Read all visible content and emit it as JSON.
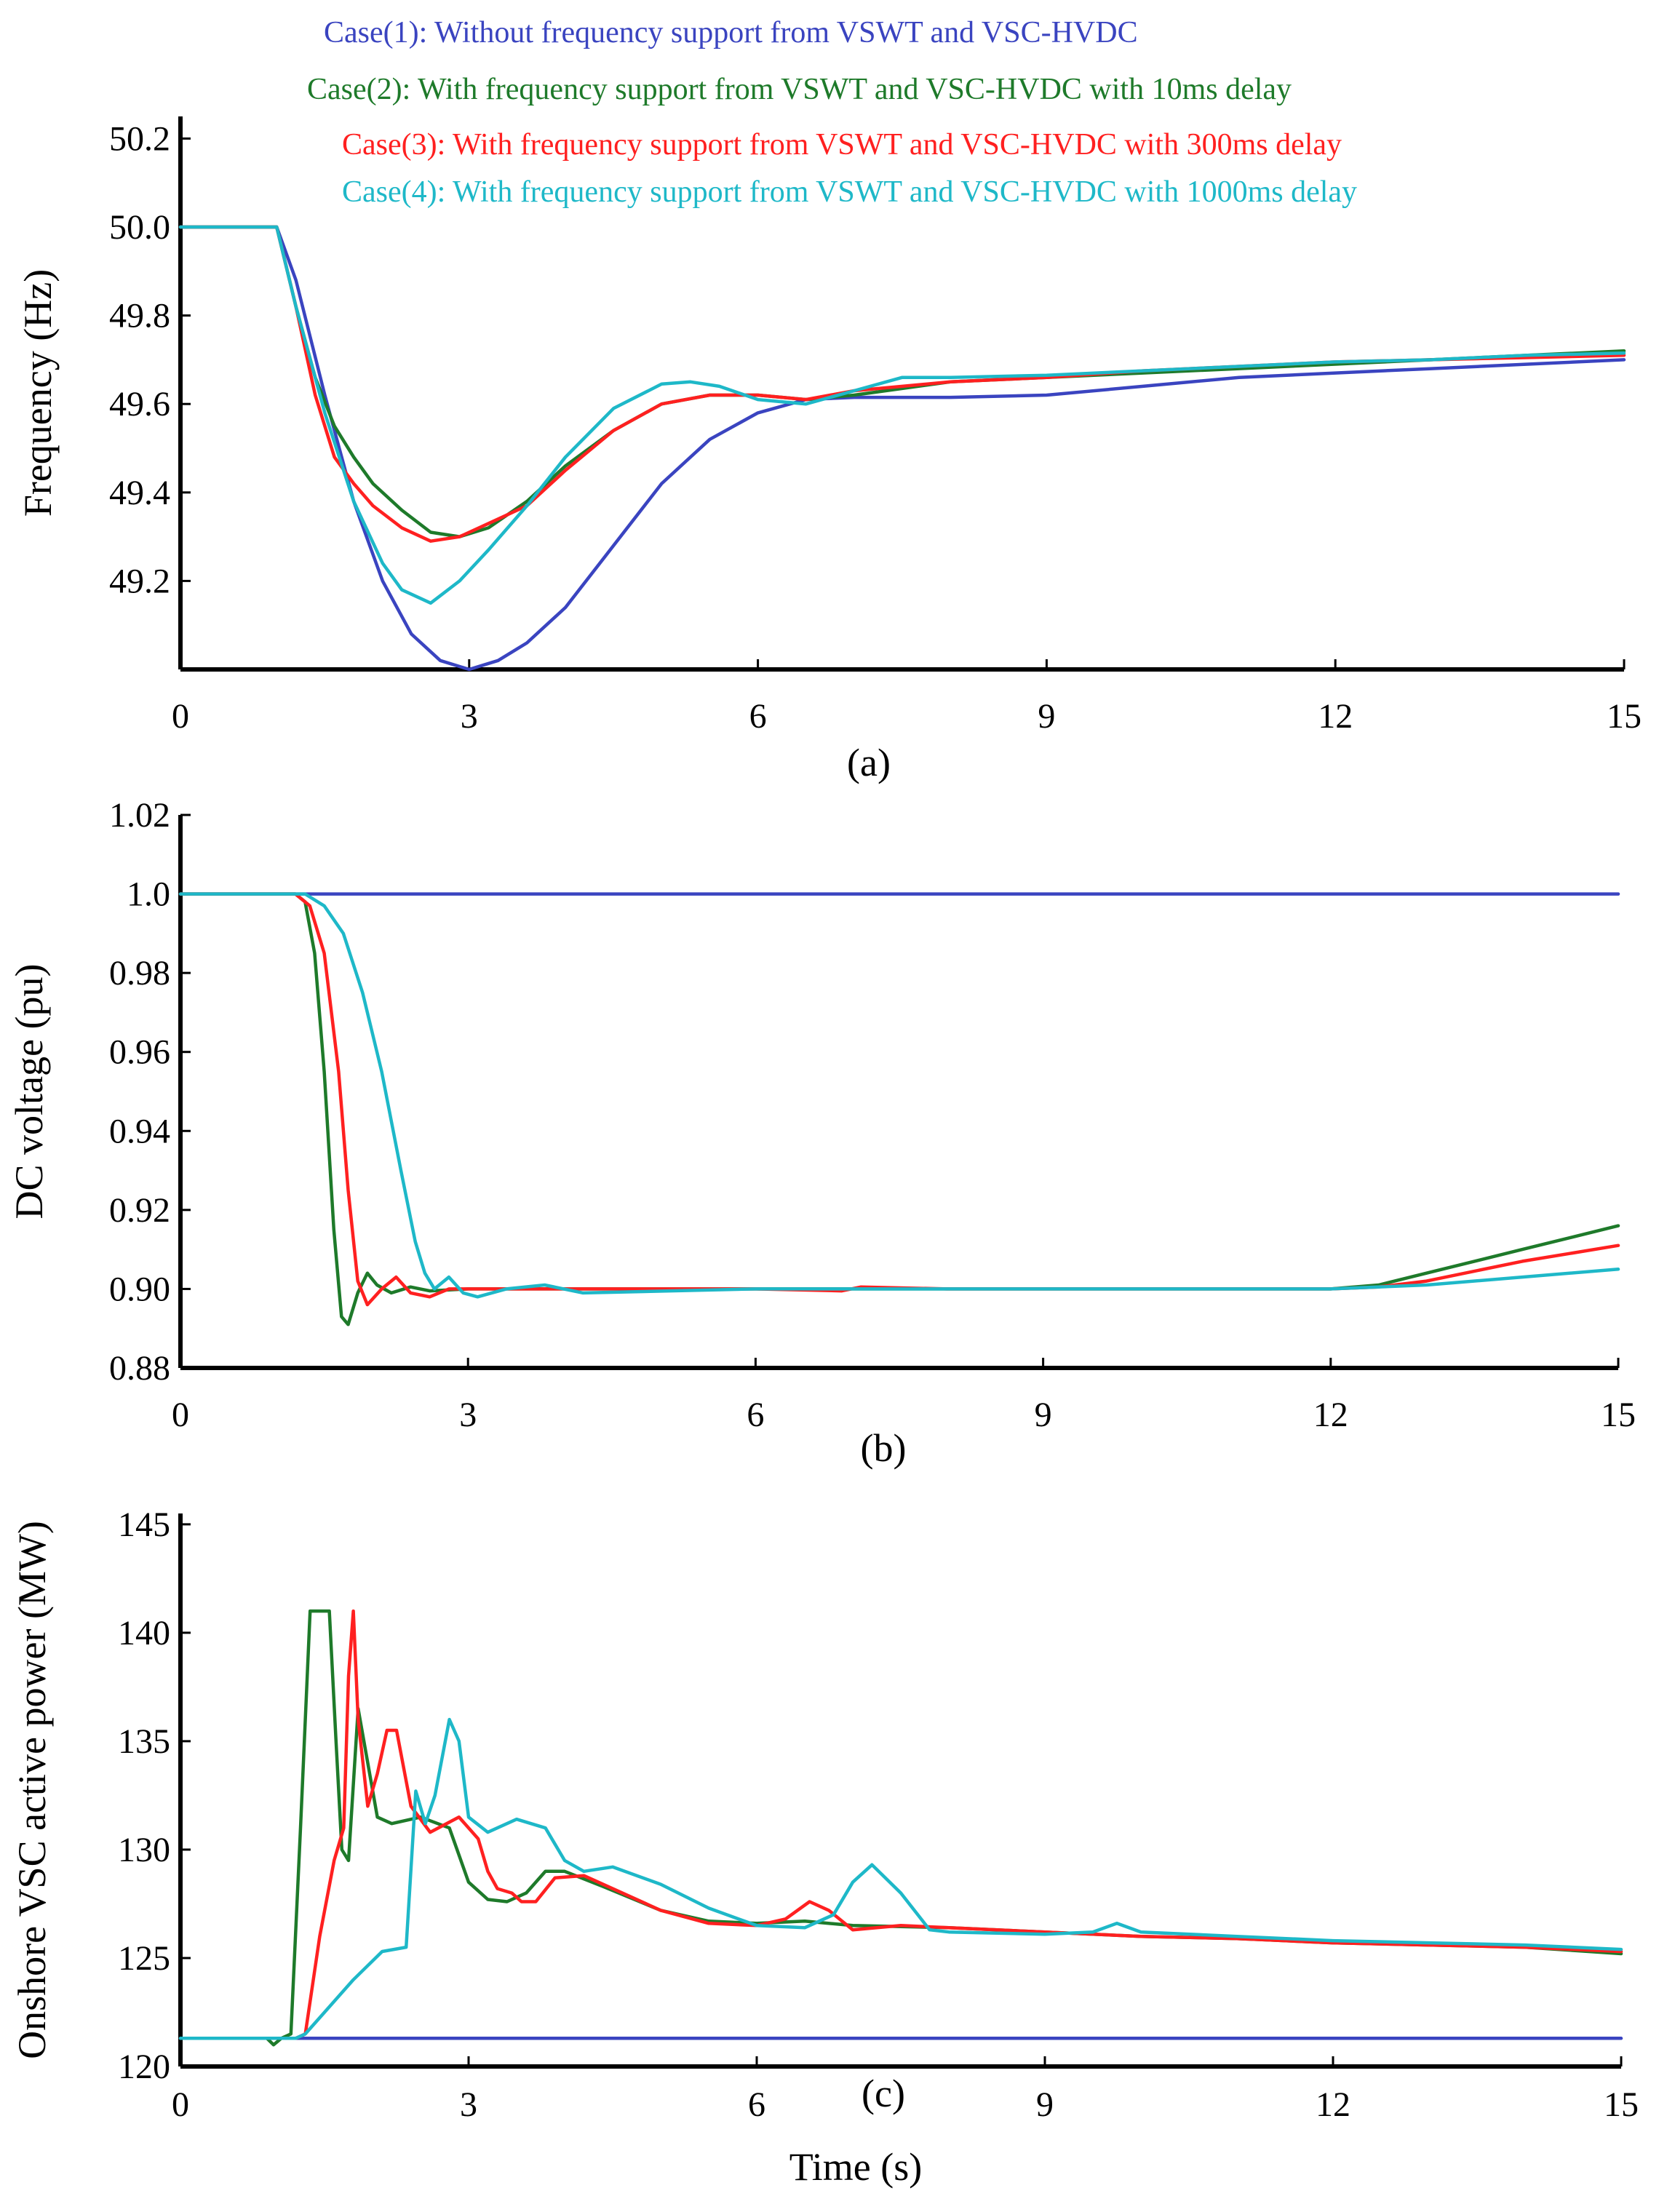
{
  "legend": [
    {
      "key": "case1",
      "label": "Case(1): Without frequency support from VSWT and VSC-HVDC",
      "color": "#3A44C0"
    },
    {
      "key": "case2",
      "label": "Case(2): With frequency support from VSWT and VSC-HVDC with 10ms delay",
      "color": "#1E7A2A"
    },
    {
      "key": "case3",
      "label": "Case(3): With frequency support from VSWT and VSC-HVDC with 300ms delay",
      "color": "#FF2020"
    },
    {
      "key": "case4",
      "label": "Case(4): With frequency support from VSWT and VSC-HVDC with 1000ms delay",
      "color": "#1EB8C8"
    }
  ],
  "xlabel": "Time (s)",
  "chart_data": [
    {
      "type": "line",
      "id": "a",
      "panel_label": "(a)",
      "ylabel": "Frequency (Hz)",
      "xlabel": "",
      "xlim": [
        0,
        15
      ],
      "ylim": [
        49.0,
        50.25
      ],
      "xticks": [
        0,
        3,
        6,
        9,
        12,
        15
      ],
      "xtick_labels": [
        "0",
        "3",
        "6",
        "9",
        "12",
        "15"
      ],
      "yticks": [
        49.2,
        49.4,
        49.6,
        49.8,
        50.0,
        50.2
      ],
      "ytick_labels": [
        "49.2",
        "49.4",
        "49.6",
        "49.8",
        "50.0",
        "50.2"
      ],
      "series": [
        {
          "name": "Case(1)",
          "color": "#3A44C0",
          "x": [
            0,
            1,
            1.2,
            1.5,
            1.8,
            2.1,
            2.4,
            2.7,
            3,
            3.3,
            3.6,
            4,
            4.5,
            5,
            5.5,
            6,
            6.5,
            7,
            8,
            9,
            10,
            11,
            12,
            13,
            14,
            15
          ],
          "y": [
            50.0,
            50.0,
            49.88,
            49.62,
            49.38,
            49.2,
            49.08,
            49.02,
            49.0,
            49.02,
            49.06,
            49.14,
            49.28,
            49.42,
            49.52,
            49.58,
            49.61,
            49.615,
            49.615,
            49.62,
            49.64,
            49.66,
            49.67,
            49.68,
            49.69,
            49.7
          ]
        },
        {
          "name": "Case(2)",
          "color": "#1E7A2A",
          "x": [
            0,
            1,
            1.2,
            1.4,
            1.6,
            1.8,
            2.0,
            2.3,
            2.6,
            2.9,
            3.2,
            3.6,
            4,
            4.5,
            5,
            5.5,
            6,
            6.5,
            7,
            8,
            9,
            10,
            11,
            12,
            13,
            14,
            15
          ],
          "y": [
            50.0,
            50.0,
            49.82,
            49.66,
            49.55,
            49.48,
            49.42,
            49.36,
            49.31,
            49.3,
            49.32,
            49.38,
            49.46,
            49.54,
            49.6,
            49.62,
            49.62,
            49.61,
            49.62,
            49.65,
            49.66,
            49.67,
            49.68,
            49.69,
            49.7,
            49.71,
            49.72
          ]
        },
        {
          "name": "Case(3)",
          "color": "#FF2020",
          "x": [
            0,
            1,
            1.2,
            1.4,
            1.6,
            1.8,
            2.0,
            2.3,
            2.6,
            2.9,
            3.2,
            3.6,
            4,
            4.5,
            5,
            5.5,
            6,
            6.5,
            7,
            8,
            9,
            10,
            11,
            12,
            13,
            14,
            15
          ],
          "y": [
            50.0,
            50.0,
            49.82,
            49.62,
            49.48,
            49.42,
            49.37,
            49.32,
            49.29,
            49.3,
            49.33,
            49.37,
            49.45,
            49.54,
            49.6,
            49.62,
            49.62,
            49.61,
            49.63,
            49.65,
            49.66,
            49.675,
            49.685,
            49.695,
            49.7,
            49.705,
            49.71
          ]
        },
        {
          "name": "Case(4)",
          "color": "#1EB8C8",
          "x": [
            0,
            1,
            1.2,
            1.5,
            1.8,
            2.1,
            2.3,
            2.6,
            2.9,
            3.2,
            3.6,
            4,
            4.5,
            5,
            5.3,
            5.6,
            6,
            6.5,
            7,
            7.5,
            8,
            9,
            10,
            11,
            12,
            13,
            14,
            15
          ],
          "y": [
            50.0,
            50.0,
            49.82,
            49.58,
            49.38,
            49.24,
            49.18,
            49.15,
            49.2,
            49.27,
            49.37,
            49.48,
            49.59,
            49.645,
            49.65,
            49.64,
            49.61,
            49.6,
            49.63,
            49.66,
            49.66,
            49.665,
            49.675,
            49.685,
            49.695,
            49.7,
            49.71,
            49.715
          ]
        }
      ]
    },
    {
      "type": "line",
      "id": "b",
      "panel_label": "(b)",
      "ylabel": "DC voltage (pu)",
      "xlabel": "",
      "xlim": [
        0,
        15
      ],
      "ylim": [
        0.88,
        1.02
      ],
      "xticks": [
        0,
        3,
        6,
        9,
        12,
        15
      ],
      "xtick_labels": [
        "0",
        "3",
        "6",
        "9",
        "12",
        "15"
      ],
      "yticks": [
        0.88,
        0.9,
        0.92,
        0.94,
        0.96,
        0.98,
        1.0,
        1.02
      ],
      "ytick_labels": [
        "0.88",
        "0.90",
        "0.92",
        "0.94",
        "0.96",
        "0.98",
        "1.0",
        "1.02"
      ],
      "series": [
        {
          "name": "Case(1)",
          "color": "#3A44C0",
          "x": [
            0,
            15
          ],
          "y": [
            1.0,
            1.0
          ]
        },
        {
          "name": "Case(2)",
          "color": "#1E7A2A",
          "x": [
            0,
            1.2,
            1.3,
            1.4,
            1.5,
            1.6,
            1.68,
            1.75,
            1.85,
            1.95,
            2.05,
            2.2,
            2.4,
            2.6,
            3,
            4,
            6,
            8,
            10,
            12,
            12.5,
            13,
            14,
            15
          ],
          "y": [
            1.0,
            1.0,
            0.998,
            0.985,
            0.955,
            0.915,
            0.893,
            0.891,
            0.899,
            0.904,
            0.901,
            0.899,
            0.9005,
            0.8995,
            0.9,
            0.9,
            0.9,
            0.9,
            0.9,
            0.9,
            0.901,
            0.904,
            0.91,
            0.916
          ]
        },
        {
          "name": "Case(3)",
          "color": "#FF2020",
          "x": [
            0,
            1.2,
            1.35,
            1.5,
            1.65,
            1.75,
            1.85,
            1.95,
            2.1,
            2.25,
            2.4,
            2.6,
            2.8,
            3,
            4,
            6,
            6.9,
            7.1,
            8,
            10,
            12,
            12.5,
            13,
            14,
            15
          ],
          "y": [
            1.0,
            1.0,
            0.997,
            0.985,
            0.955,
            0.925,
            0.902,
            0.896,
            0.9,
            0.903,
            0.899,
            0.898,
            0.9,
            0.9,
            0.9,
            0.9,
            0.8995,
            0.9005,
            0.9,
            0.9,
            0.9,
            0.9005,
            0.902,
            0.907,
            0.911
          ]
        },
        {
          "name": "Case(4)",
          "color": "#1EB8C8",
          "x": [
            0,
            1.3,
            1.5,
            1.7,
            1.9,
            2.1,
            2.3,
            2.45,
            2.55,
            2.65,
            2.8,
            2.95,
            3.1,
            3.4,
            3.8,
            4.2,
            6,
            8,
            10,
            12,
            13,
            14,
            15
          ],
          "y": [
            1.0,
            1.0,
            0.997,
            0.99,
            0.975,
            0.955,
            0.93,
            0.912,
            0.904,
            0.9,
            0.903,
            0.899,
            0.898,
            0.9,
            0.901,
            0.899,
            0.9,
            0.9,
            0.9,
            0.9,
            0.901,
            0.903,
            0.905
          ]
        }
      ]
    },
    {
      "type": "line",
      "id": "c",
      "panel_label": "(c)",
      "ylabel": "Onshore VSC active power (MW)",
      "xlabel": "Time (s)",
      "xlim": [
        0,
        15
      ],
      "ylim": [
        120,
        145.5
      ],
      "xticks": [
        0,
        3,
        6,
        9,
        12,
        15
      ],
      "xtick_labels": [
        "0",
        "3",
        "6",
        "9",
        "12",
        "15"
      ],
      "yticks": [
        120,
        125,
        130,
        135,
        140,
        145
      ],
      "ytick_labels": [
        "120",
        "125",
        "130",
        "135",
        "140",
        "145"
      ],
      "series": [
        {
          "name": "Case(1)",
          "color": "#3A44C0",
          "x": [
            0,
            15
          ],
          "y": [
            121.3,
            121.3
          ]
        },
        {
          "name": "Case(2)",
          "color": "#1E7A2A",
          "x": [
            0,
            0.9,
            0.97,
            1.05,
            1.15,
            1.25,
            1.35,
            1.45,
            1.55,
            1.62,
            1.68,
            1.75,
            1.85,
            1.95,
            2.05,
            2.2,
            2.5,
            2.8,
            3.0,
            3.2,
            3.4,
            3.6,
            3.8,
            4.0,
            4.4,
            5,
            5.5,
            6,
            6.5,
            7,
            8,
            9,
            10,
            11,
            12,
            13,
            14,
            15
          ],
          "y": [
            121.3,
            121.3,
            121.0,
            121.3,
            121.5,
            131,
            141,
            141,
            141,
            135,
            130,
            129.5,
            136.5,
            134,
            131.5,
            131.2,
            131.5,
            131,
            128.5,
            127.7,
            127.6,
            128,
            129,
            129,
            128.3,
            127.2,
            126.7,
            126.6,
            126.7,
            126.5,
            126.4,
            126.2,
            126,
            125.9,
            125.7,
            125.6,
            125.5,
            125.2
          ]
        },
        {
          "name": "Case(3)",
          "color": "#FF2020",
          "x": [
            0,
            1.2,
            1.3,
            1.45,
            1.6,
            1.7,
            1.75,
            1.8,
            1.85,
            1.95,
            2.05,
            2.15,
            2.25,
            2.4,
            2.6,
            2.9,
            3.1,
            3.2,
            3.3,
            3.45,
            3.55,
            3.7,
            3.9,
            4.2,
            4.5,
            5,
            5.5,
            6,
            6.3,
            6.55,
            6.75,
            7,
            7.5,
            8,
            9,
            10,
            11,
            12,
            13,
            14,
            15
          ],
          "y": [
            121.3,
            121.3,
            121.5,
            126,
            129.5,
            131,
            138,
            141,
            136,
            132,
            133.5,
            135.5,
            135.5,
            132,
            130.8,
            131.5,
            130.5,
            129,
            128.2,
            128,
            127.6,
            127.6,
            128.7,
            128.8,
            128.2,
            127.2,
            126.6,
            126.5,
            126.8,
            127.6,
            127.2,
            126.3,
            126.5,
            126.4,
            126.2,
            126,
            125.9,
            125.7,
            125.6,
            125.5,
            125.3
          ]
        },
        {
          "name": "Case(4)",
          "color": "#1EB8C8",
          "x": [
            0,
            1.2,
            1.3,
            1.5,
            1.8,
            2.1,
            2.35,
            2.45,
            2.55,
            2.65,
            2.8,
            2.9,
            3.0,
            3.2,
            3.5,
            3.8,
            4.0,
            4.2,
            4.5,
            5,
            5.5,
            6,
            6.5,
            6.8,
            7.0,
            7.2,
            7.5,
            7.8,
            8.0,
            9,
            9.5,
            9.75,
            10,
            11,
            12,
            13,
            14,
            15
          ],
          "y": [
            121.3,
            121.3,
            121.5,
            122.5,
            124,
            125.3,
            125.5,
            132.7,
            131.2,
            132.5,
            136,
            135,
            131.5,
            130.8,
            131.4,
            131,
            129.5,
            129,
            129.2,
            128.4,
            127.3,
            126.5,
            126.4,
            127,
            128.5,
            129.3,
            128,
            126.3,
            126.2,
            126.1,
            126.2,
            126.6,
            126.2,
            126,
            125.8,
            125.7,
            125.6,
            125.4
          ]
        }
      ]
    }
  ]
}
